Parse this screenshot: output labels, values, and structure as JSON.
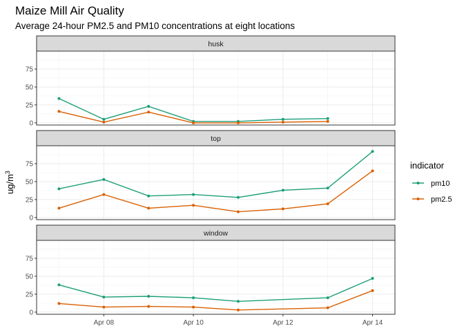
{
  "chart_data": {
    "type": "line",
    "title": "Maize Mill Air Quality",
    "subtitle": "Average 24-hour PM2.5 and PM10 concentrations at eight locations",
    "ylabel_main": "ug/m",
    "ylabel_sup": "3",
    "xlabel": "",
    "legend_title": "indicator",
    "legend_position": "right",
    "colors": {
      "pm10": "#1b9e77",
      "pm2.5": "#d95f02"
    },
    "x_ticks": [
      "Apr 08",
      "Apr 10",
      "Apr 12",
      "Apr 14"
    ],
    "y_ticks": [
      "0",
      "25",
      "50",
      "75"
    ],
    "ylim": [
      -3,
      100
    ],
    "grid": true,
    "panels": [
      {
        "name": "husk",
        "series": [
          {
            "name": "pm10",
            "x": [
              "2023-04-07",
              "2023-04-08",
              "2023-04-09",
              "2023-04-10",
              "2023-04-11",
              "2023-04-12",
              "2023-04-13"
            ],
            "values": [
              34,
              5,
              23,
              2,
              2,
              5,
              6
            ]
          },
          {
            "name": "pm2.5",
            "x": [
              "2023-04-07",
              "2023-04-08",
              "2023-04-09",
              "2023-04-10",
              "2023-04-11",
              "2023-04-12",
              "2023-04-13"
            ],
            "values": [
              16,
              1,
              15,
              0,
              0,
              1,
              2
            ]
          }
        ]
      },
      {
        "name": "top",
        "series": [
          {
            "name": "pm10",
            "x": [
              "2023-04-07",
              "2023-04-08",
              "2023-04-09",
              "2023-04-10",
              "2023-04-11",
              "2023-04-12",
              "2023-04-13",
              "2023-04-14"
            ],
            "values": [
              40,
              53,
              30,
              32,
              28,
              38,
              41,
              92
            ]
          },
          {
            "name": "pm2.5",
            "x": [
              "2023-04-07",
              "2023-04-08",
              "2023-04-09",
              "2023-04-10",
              "2023-04-11",
              "2023-04-12",
              "2023-04-13",
              "2023-04-14"
            ],
            "values": [
              13,
              32,
              13,
              17,
              8,
              12,
              19,
              65
            ]
          }
        ]
      },
      {
        "name": "window",
        "series": [
          {
            "name": "pm10",
            "x": [
              "2023-04-07",
              "2023-04-08",
              "2023-04-09",
              "2023-04-10",
              "2023-04-11",
              "2023-04-13",
              "2023-04-14"
            ],
            "values": [
              38,
              21,
              22,
              20,
              15,
              20,
              47
            ]
          },
          {
            "name": "pm2.5",
            "x": [
              "2023-04-07",
              "2023-04-08",
              "2023-04-09",
              "2023-04-10",
              "2023-04-11",
              "2023-04-13",
              "2023-04-14"
            ],
            "values": [
              12,
              7,
              8,
              7,
              3,
              6,
              30
            ]
          }
        ]
      }
    ]
  }
}
